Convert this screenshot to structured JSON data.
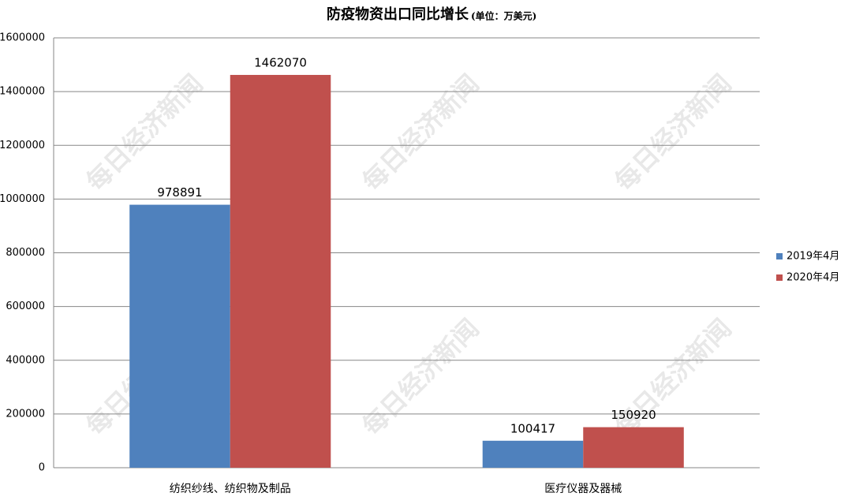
{
  "chart_data": {
    "type": "bar",
    "title": "防疫物资出口同比增长",
    "subtitle": "(单位：万美元)",
    "watermark": "每日经济新闻",
    "categories": [
      "纺织纱线、纺织物及制品",
      "医疗仪器及器械"
    ],
    "series": [
      {
        "name": "2019年4月",
        "color": "#4f81bd",
        "values": [
          978891,
          100417
        ]
      },
      {
        "name": "2020年4月",
        "color": "#c0504d",
        "values": [
          1462070,
          150920
        ]
      }
    ],
    "ylim": [
      0,
      1600000
    ],
    "yticks": [
      0,
      200000,
      400000,
      600000,
      800000,
      1000000,
      1200000,
      1400000,
      1600000
    ],
    "grid": true,
    "legend": "right",
    "data_labels": true
  }
}
